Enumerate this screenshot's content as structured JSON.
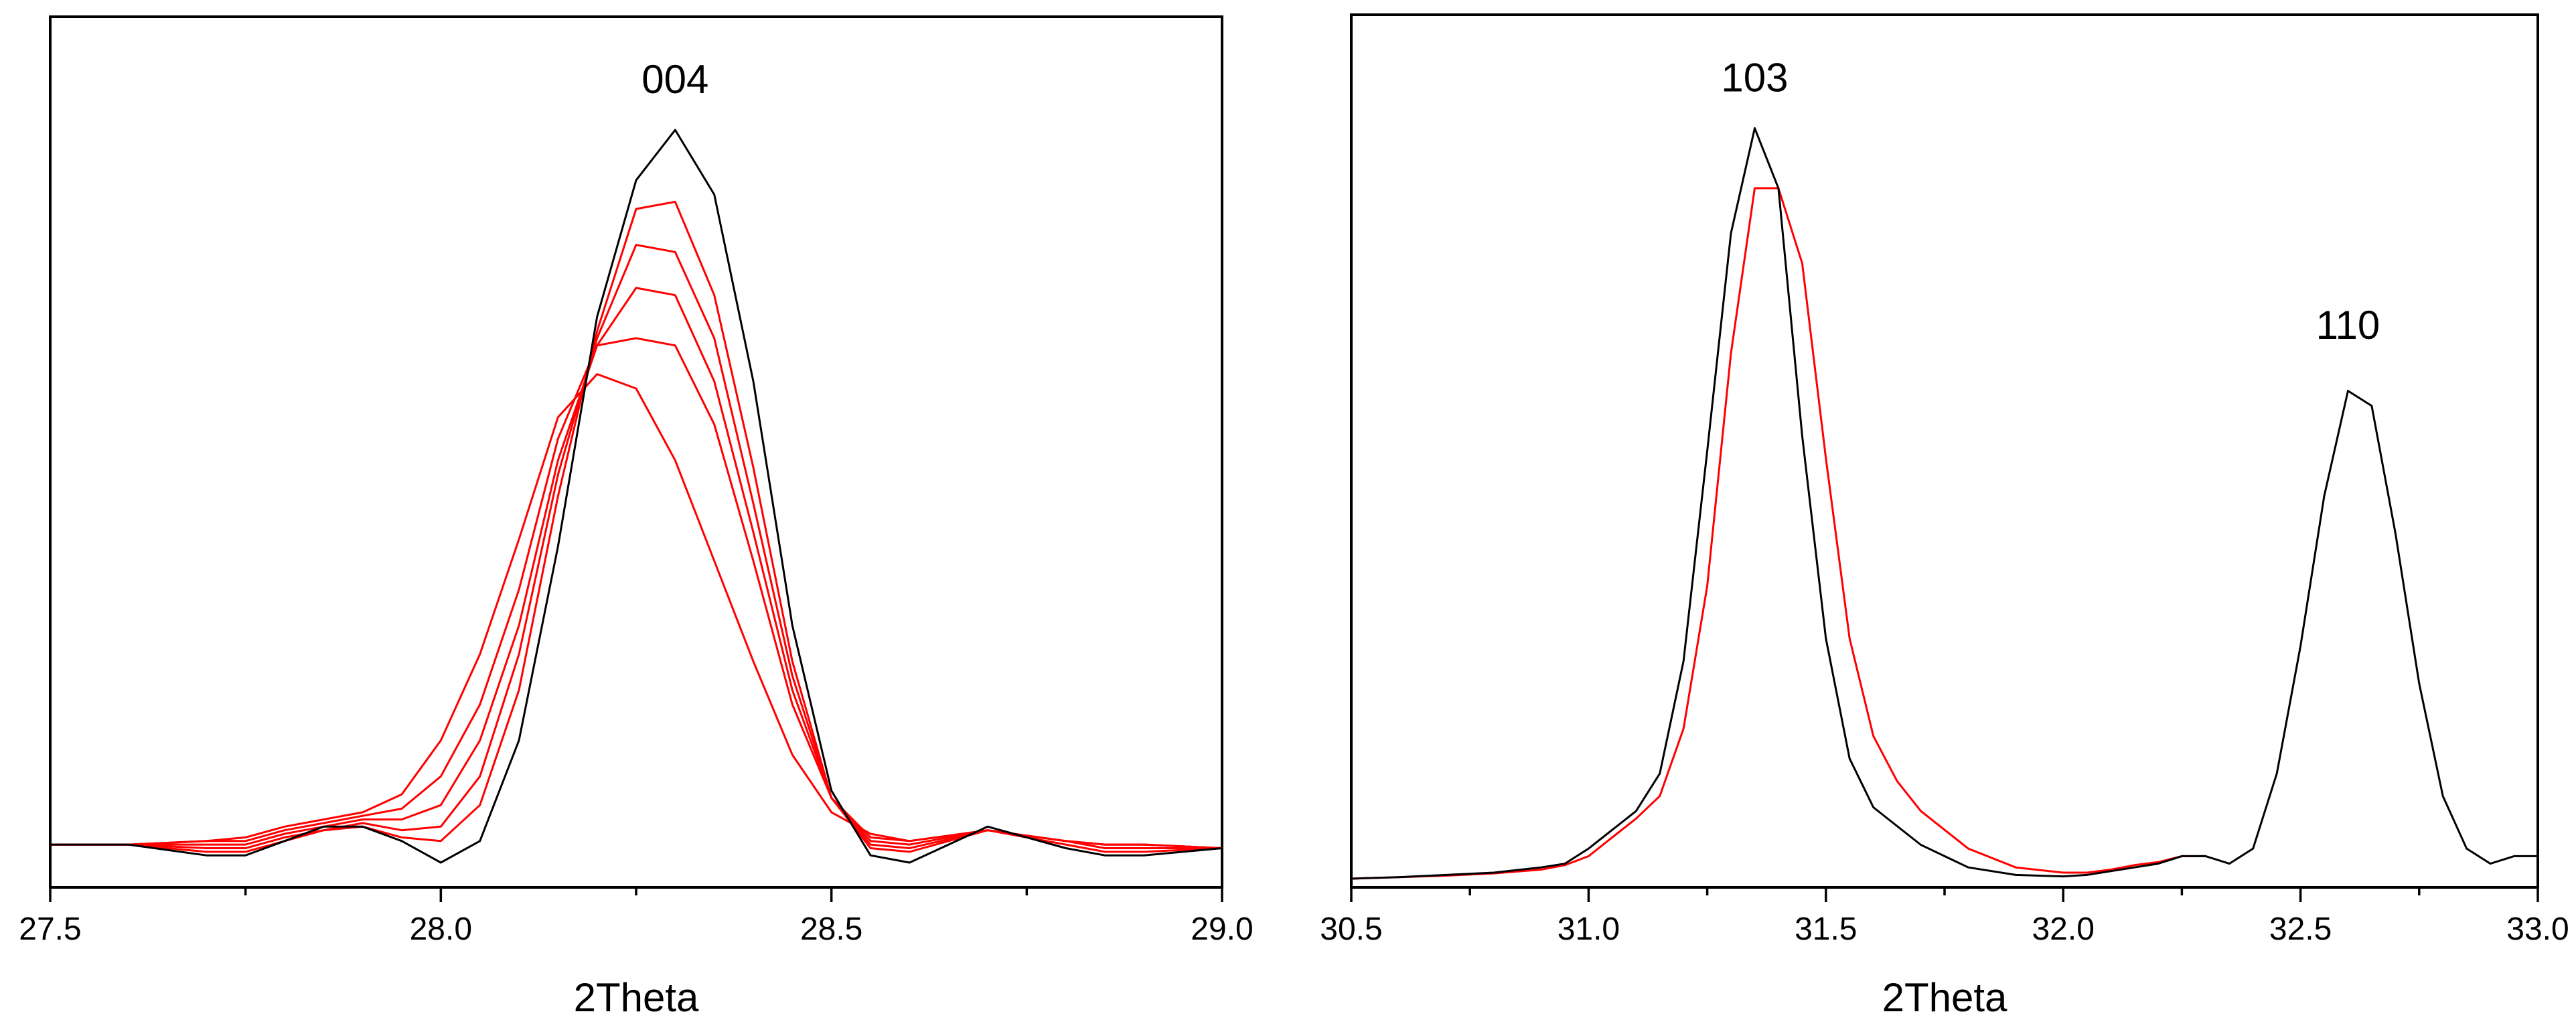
{
  "chart_data": [
    {
      "type": "line",
      "xlabel": "2Theta",
      "ylabel": "",
      "xlim": [
        27.5,
        29.0
      ],
      "ylim": [
        0,
        1
      ],
      "y_ticks_shown": false,
      "grid": false,
      "tick_labels": [
        "27.5",
        "28.0",
        "28.5",
        "29.0"
      ],
      "annotations": [
        {
          "text": "004",
          "x": 28.3,
          "y": 1.0
        }
      ],
      "series": [
        {
          "color": "#000000",
          "x": [
            27.5,
            27.6,
            27.7,
            27.75,
            27.8,
            27.85,
            27.9,
            27.95,
            28.0,
            28.05,
            28.1,
            28.15,
            28.2,
            28.25,
            28.3,
            28.35,
            28.4,
            28.45,
            28.5,
            28.55,
            28.6,
            28.7,
            28.8,
            28.85,
            28.9,
            29.0
          ],
          "y": [
            0.005,
            0.005,
            -0.01,
            -0.01,
            0.01,
            0.03,
            0.03,
            0.01,
            -0.02,
            0.01,
            0.15,
            0.42,
            0.74,
            0.93,
            1.0,
            0.91,
            0.65,
            0.31,
            0.08,
            -0.01,
            -0.02,
            0.03,
            0.0,
            -0.01,
            -0.01,
            0.0
          ]
        },
        {
          "color": "#ff0000",
          "x": [
            27.5,
            27.6,
            27.7,
            27.75,
            27.8,
            27.85,
            27.9,
            27.95,
            28.0,
            28.05,
            28.1,
            28.15,
            28.2,
            28.25,
            28.3,
            28.35,
            28.4,
            28.45,
            28.5,
            28.55,
            28.6,
            28.7,
            28.8,
            28.85,
            28.9,
            29.0
          ],
          "y": [
            0.005,
            0.005,
            -0.005,
            -0.005,
            0.01,
            0.025,
            0.03,
            0.015,
            0.01,
            0.06,
            0.22,
            0.49,
            0.72,
            0.89,
            0.9,
            0.77,
            0.53,
            0.26,
            0.07,
            0.0,
            -0.005,
            0.025,
            0.005,
            -0.005,
            -0.005,
            0.0
          ]
        },
        {
          "color": "#ff0000",
          "x": [
            27.5,
            27.6,
            27.7,
            27.75,
            27.8,
            27.85,
            27.9,
            27.95,
            28.0,
            28.05,
            28.1,
            28.15,
            28.2,
            28.25,
            28.3,
            28.35,
            28.4,
            28.45,
            28.5,
            28.55,
            28.6,
            28.7,
            28.8,
            28.85,
            28.9,
            29.0
          ],
          "y": [
            0.005,
            0.005,
            0.0,
            0.0,
            0.015,
            0.025,
            0.035,
            0.025,
            0.03,
            0.1,
            0.27,
            0.52,
            0.71,
            0.84,
            0.83,
            0.71,
            0.48,
            0.24,
            0.07,
            0.005,
            0.0,
            0.025,
            0.01,
            0.0,
            0.0,
            0.0
          ]
        },
        {
          "color": "#ff0000",
          "x": [
            27.5,
            27.6,
            27.7,
            27.75,
            27.8,
            27.85,
            27.9,
            27.95,
            28.0,
            28.05,
            28.1,
            28.15,
            28.2,
            28.25,
            28.3,
            28.35,
            28.4,
            28.45,
            28.5,
            28.55,
            28.6,
            28.7,
            28.8,
            28.85,
            28.9,
            29.0
          ],
          "y": [
            0.005,
            0.005,
            0.005,
            0.005,
            0.02,
            0.03,
            0.04,
            0.04,
            0.06,
            0.15,
            0.31,
            0.54,
            0.7,
            0.78,
            0.77,
            0.65,
            0.44,
            0.22,
            0.07,
            0.01,
            0.005,
            0.025,
            0.01,
            0.005,
            0.005,
            0.0
          ]
        },
        {
          "color": "#ff0000",
          "x": [
            27.5,
            27.6,
            27.7,
            27.75,
            27.8,
            27.85,
            27.9,
            27.95,
            28.0,
            28.05,
            28.1,
            28.15,
            28.2,
            28.25,
            28.3,
            28.35,
            28.4,
            28.45,
            28.5,
            28.55,
            28.6,
            28.7,
            28.8,
            28.85,
            28.9,
            29.0
          ],
          "y": [
            0.005,
            0.005,
            0.01,
            0.01,
            0.025,
            0.035,
            0.045,
            0.055,
            0.1,
            0.2,
            0.36,
            0.57,
            0.7,
            0.71,
            0.7,
            0.59,
            0.4,
            0.2,
            0.07,
            0.015,
            0.01,
            0.025,
            0.01,
            0.005,
            0.005,
            0.0
          ]
        },
        {
          "color": "#ff0000",
          "x": [
            27.5,
            27.6,
            27.7,
            27.75,
            27.8,
            27.85,
            27.9,
            27.95,
            28.0,
            28.05,
            28.1,
            28.15,
            28.2,
            28.25,
            28.3,
            28.35,
            28.4,
            28.45,
            28.5,
            28.55,
            28.6,
            28.7,
            28.8,
            28.85,
            28.9,
            29.0
          ],
          "y": [
            0.005,
            0.005,
            0.01,
            0.015,
            0.03,
            0.04,
            0.05,
            0.075,
            0.15,
            0.27,
            0.43,
            0.6,
            0.66,
            0.64,
            0.54,
            0.4,
            0.26,
            0.13,
            0.05,
            0.02,
            0.01,
            0.025,
            0.01,
            0.005,
            0.005,
            0.0
          ]
        }
      ]
    },
    {
      "type": "line",
      "xlabel": "2Theta",
      "ylabel": "",
      "xlim": [
        30.5,
        33.0
      ],
      "ylim": [
        0,
        1
      ],
      "y_ticks_shown": false,
      "grid": false,
      "tick_labels": [
        "30.5",
        "31.0",
        "31.5",
        "32.0",
        "32.5",
        "33.0"
      ],
      "annotations": [
        {
          "text": "103",
          "x": 31.35,
          "y": 1.0
        },
        {
          "text": "110",
          "x": 32.6,
          "y": 0.67
        }
      ],
      "series": [
        {
          "color": "#000000",
          "x": [
            30.5,
            30.6,
            30.7,
            30.8,
            30.9,
            30.95,
            31.0,
            31.05,
            31.1,
            31.15,
            31.2,
            31.25,
            31.3,
            31.35,
            31.4,
            31.45,
            31.5,
            31.55,
            31.6,
            31.65,
            31.7,
            31.8,
            31.9,
            32.0,
            32.05,
            32.1,
            32.15,
            32.2,
            32.25,
            32.3,
            32.35,
            32.4,
            32.45,
            32.5,
            32.55,
            32.6,
            32.65,
            32.7,
            32.75,
            32.8,
            32.85,
            32.9,
            32.95,
            33.0
          ],
          "y": [
            0.0,
            0.002,
            0.005,
            0.008,
            0.015,
            0.02,
            0.04,
            0.065,
            0.09,
            0.14,
            0.29,
            0.57,
            0.86,
            1.0,
            0.92,
            0.59,
            0.32,
            0.16,
            0.095,
            0.07,
            0.045,
            0.015,
            0.005,
            0.003,
            0.005,
            0.01,
            0.015,
            0.02,
            0.03,
            0.03,
            0.02,
            0.04,
            0.14,
            0.31,
            0.51,
            0.65,
            0.63,
            0.46,
            0.26,
            0.11,
            0.04,
            0.02,
            0.03,
            0.03
          ]
        },
        {
          "color": "#ff0000",
          "x": [
            30.5,
            30.6,
            30.7,
            30.8,
            30.9,
            30.95,
            31.0,
            31.05,
            31.1,
            31.15,
            31.2,
            31.25,
            31.3,
            31.35,
            31.4,
            31.45,
            31.5,
            31.55,
            31.6,
            31.65,
            31.7,
            31.8,
            31.9,
            32.0,
            32.05,
            32.1,
            32.15,
            32.2,
            32.25,
            32.3
          ],
          "y": [
            0.0,
            0.002,
            0.004,
            0.007,
            0.012,
            0.018,
            0.03,
            0.055,
            0.08,
            0.11,
            0.2,
            0.39,
            0.7,
            0.92,
            0.92,
            0.82,
            0.56,
            0.32,
            0.19,
            0.13,
            0.09,
            0.04,
            0.015,
            0.008,
            0.008,
            0.012,
            0.018,
            0.022,
            0.03,
            0.03
          ]
        }
      ]
    }
  ]
}
